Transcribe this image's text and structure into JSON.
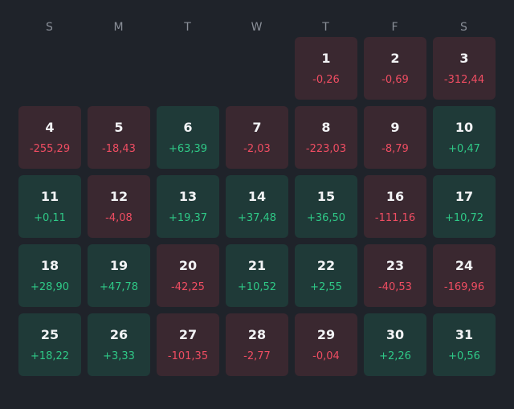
{
  "weekdays": [
    "S",
    "M",
    "T",
    "W",
    "T",
    "F",
    "S"
  ],
  "leading_blanks": 4,
  "days": [
    {
      "day": "1",
      "pnl": "-0,26",
      "status": "loss"
    },
    {
      "day": "2",
      "pnl": "-0,69",
      "status": "loss"
    },
    {
      "day": "3",
      "pnl": "-312,44",
      "status": "loss"
    },
    {
      "day": "4",
      "pnl": "-255,29",
      "status": "loss"
    },
    {
      "day": "5",
      "pnl": "-18,43",
      "status": "loss"
    },
    {
      "day": "6",
      "pnl": "+63,39",
      "status": "gain"
    },
    {
      "day": "7",
      "pnl": "-2,03",
      "status": "loss"
    },
    {
      "day": "8",
      "pnl": "-223,03",
      "status": "loss"
    },
    {
      "day": "9",
      "pnl": "-8,79",
      "status": "loss"
    },
    {
      "day": "10",
      "pnl": "+0,47",
      "status": "gain"
    },
    {
      "day": "11",
      "pnl": "+0,11",
      "status": "gain"
    },
    {
      "day": "12",
      "pnl": "-4,08",
      "status": "loss"
    },
    {
      "day": "13",
      "pnl": "+19,37",
      "status": "gain"
    },
    {
      "day": "14",
      "pnl": "+37,48",
      "status": "gain"
    },
    {
      "day": "15",
      "pnl": "+36,50",
      "status": "gain"
    },
    {
      "day": "16",
      "pnl": "-111,16",
      "status": "loss"
    },
    {
      "day": "17",
      "pnl": "+10,72",
      "status": "gain"
    },
    {
      "day": "18",
      "pnl": "+28,90",
      "status": "gain"
    },
    {
      "day": "19",
      "pnl": "+47,78",
      "status": "gain"
    },
    {
      "day": "20",
      "pnl": "-42,25",
      "status": "loss"
    },
    {
      "day": "21",
      "pnl": "+10,52",
      "status": "gain"
    },
    {
      "day": "22",
      "pnl": "+2,55",
      "status": "gain"
    },
    {
      "day": "23",
      "pnl": "-40,53",
      "status": "loss"
    },
    {
      "day": "24",
      "pnl": "-169,96",
      "status": "loss"
    },
    {
      "day": "25",
      "pnl": "+18,22",
      "status": "gain"
    },
    {
      "day": "26",
      "pnl": "+3,33",
      "status": "gain"
    },
    {
      "day": "27",
      "pnl": "-101,35",
      "status": "loss"
    },
    {
      "day": "28",
      "pnl": "-2,77",
      "status": "loss"
    },
    {
      "day": "29",
      "pnl": "-0,04",
      "status": "loss"
    },
    {
      "day": "30",
      "pnl": "+2,26",
      "status": "gain"
    },
    {
      "day": "31",
      "pnl": "+0,56",
      "status": "gain"
    }
  ],
  "colors": {
    "background": "#1f232a",
    "loss_cell": "#3a2830",
    "gain_cell": "#1f3a38",
    "loss_text": "#ef4d62",
    "gain_text": "#2fc987"
  }
}
